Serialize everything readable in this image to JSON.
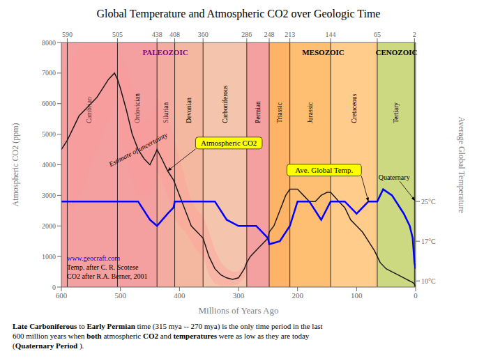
{
  "chart_data": {
    "type": "line",
    "title": "Global Temperature and Atmospheric CO2 over Geologic Time",
    "xlabel": "Millions of Years Ago",
    "ylabel": "Atmospheric CO2 (ppm)",
    "y2label": "Average Global Temperature",
    "xlim": [
      600,
      0
    ],
    "xticks": [
      600,
      500,
      400,
      300,
      200,
      100,
      0
    ],
    "x2lim": [
      600,
      0
    ],
    "x2ticks": [
      590,
      505,
      438,
      408,
      360,
      286,
      248,
      213,
      144,
      65,
      2
    ],
    "ylim": [
      0,
      8000
    ],
    "yticks": [
      0,
      1000,
      2000,
      3000,
      4000,
      5000,
      6000,
      7000,
      8000
    ],
    "y2lim": [
      0,
      8000
    ],
    "y2ticks": [
      {
        "value": 200,
        "label": "10°C"
      },
      {
        "value": 1500,
        "label": "17°C"
      },
      {
        "value": 2800,
        "label": "25°C"
      }
    ],
    "grid": false,
    "series": [
      {
        "name": "Estimate of uncertainty",
        "type": "band",
        "color": "#ff9999",
        "x": [
          600,
          590,
          580,
          570,
          560,
          550,
          540,
          530,
          520,
          510,
          505,
          500,
          490,
          480,
          470,
          460,
          450,
          440,
          438,
          430,
          420,
          410,
          408,
          400,
          390,
          380,
          370,
          360,
          350,
          340,
          330,
          320,
          310,
          300,
          290,
          286
        ],
        "upper": [
          7000,
          7200,
          7500,
          7800,
          7900,
          7900,
          7900,
          7900,
          7900,
          7900,
          7800,
          7600,
          7200,
          6500,
          6000,
          5500,
          5500,
          6000,
          6200,
          6000,
          5500,
          5000,
          4800,
          4200,
          3500,
          2800,
          2500,
          2300,
          1800,
          1200,
          800,
          600,
          500,
          500,
          700,
          900
        ],
        "lower": [
          2000,
          2200,
          2500,
          3000,
          3500,
          4000,
          4500,
          5000,
          5500,
          6000,
          5800,
          5000,
          4200,
          3500,
          3000,
          3000,
          3000,
          3500,
          3800,
          3500,
          3000,
          2500,
          2200,
          2000,
          1800,
          1500,
          1200,
          1000,
          400,
          100,
          50,
          50,
          50,
          100,
          300,
          600
        ]
      },
      {
        "name": "Atmospheric CO2",
        "color": "#1a1a1a",
        "x": [
          600,
          590,
          580,
          570,
          560,
          550,
          540,
          530,
          520,
          510,
          505,
          500,
          490,
          480,
          470,
          460,
          450,
          440,
          438,
          430,
          420,
          410,
          408,
          400,
          390,
          380,
          370,
          360,
          350,
          340,
          330,
          320,
          310,
          300,
          290,
          286,
          280,
          270,
          260,
          250,
          248,
          240,
          230,
          220,
          213,
          200,
          190,
          180,
          170,
          160,
          150,
          144,
          130,
          120,
          110,
          100,
          90,
          80,
          70,
          65,
          60,
          50,
          40,
          30,
          20,
          10,
          5,
          2,
          0
        ],
        "values": [
          4500,
          4800,
          5200,
          5600,
          5800,
          6000,
          6200,
          6500,
          6800,
          7000,
          6800,
          6500,
          5800,
          5000,
          4500,
          4200,
          4000,
          4400,
          4500,
          4200,
          3800,
          3500,
          3400,
          3000,
          2500,
          2000,
          1800,
          1600,
          1000,
          600,
          400,
          300,
          250,
          300,
          600,
          800,
          1000,
          1200,
          1400,
          1600,
          1800,
          2000,
          2500,
          3000,
          3200,
          3200,
          3000,
          2800,
          2800,
          3000,
          3100,
          3100,
          2800,
          2600,
          2200,
          2000,
          1800,
          1500,
          1200,
          1000,
          800,
          600,
          500,
          400,
          300,
          200,
          150,
          100,
          20
        ]
      },
      {
        "name": "Ave. Global Temp.",
        "color": "blue",
        "axis": "y2",
        "x": [
          600,
          590,
          580,
          560,
          540,
          520,
          505,
          490,
          470,
          450,
          438,
          420,
          410,
          408,
          390,
          370,
          360,
          340,
          320,
          300,
          286,
          270,
          250,
          248,
          230,
          213,
          200,
          180,
          160,
          144,
          130,
          120,
          100,
          80,
          65,
          55,
          40,
          20,
          10,
          5,
          2,
          0
        ],
        "values": [
          2800,
          2800,
          2800,
          2800,
          2800,
          2800,
          2800,
          2800,
          2800,
          2200,
          2000,
          2400,
          2600,
          2800,
          2800,
          2800,
          2800,
          2800,
          2200,
          2000,
          2000,
          2000,
          1600,
          1400,
          1500,
          2000,
          2800,
          2800,
          2200,
          2800,
          2800,
          2800,
          2400,
          2800,
          2800,
          3200,
          3000,
          2400,
          2000,
          1600,
          800,
          600
        ]
      }
    ],
    "periods": [
      {
        "name": "Cambrian",
        "start": 600,
        "end": 505,
        "color": "#f08080"
      },
      {
        "name": "Ordovician",
        "start": 505,
        "end": 438,
        "color": "#f08080"
      },
      {
        "name": "Silurian",
        "start": 438,
        "end": 408,
        "color": "#f09080"
      },
      {
        "name": "Devonian",
        "start": 408,
        "end": 360,
        "color": "#f0a080"
      },
      {
        "name": "Carboniferous",
        "start": 360,
        "end": 286,
        "color": "#f0b090"
      },
      {
        "name": "Permian",
        "start": 286,
        "end": 248,
        "color": "#f08080"
      },
      {
        "name": "Triassic",
        "start": 248,
        "end": 213,
        "color": "#ff9933"
      },
      {
        "name": "Jurassic",
        "start": 213,
        "end": 144,
        "color": "#ffaa44"
      },
      {
        "name": "Cretaceous",
        "start": 144,
        "end": 65,
        "color": "#ffbb66"
      },
      {
        "name": "Tertiary",
        "start": 65,
        "end": 2,
        "color": "#bbcc55"
      },
      {
        "name": "Quaternary",
        "start": 2,
        "end": 0,
        "color": "#88aa33"
      }
    ],
    "eras": [
      {
        "name": "PALEOZOIC",
        "color": "purple",
        "from": "Cambrian",
        "to": "Permian"
      },
      {
        "name": "MESOZOIC",
        "color": "black",
        "from": "Triassic",
        "to": "Cretaceous"
      },
      {
        "name": "CENOZOIC",
        "color": "black",
        "from": "Tertiary",
        "to": "Quaternary"
      }
    ],
    "annotations": [
      {
        "text": "www.geocraft.com",
        "color": "blue"
      },
      {
        "text": "Temp. after C. R. Scotese"
      },
      {
        "text": "CO2 after R.A. Berner, 2001"
      }
    ],
    "caption": [
      "Late Carboniferous to Early Permian time (315 mya -- 270 mya) is the only time period in the last",
      "600 million years when both atmospheric CO2 and temperatures were as low as they are today",
      "(Quaternary Period )."
    ],
    "caption_bold": [
      "Late Carboniferous",
      "Early Permian",
      "both",
      "CO2",
      "temperatures",
      "Quaternary Period"
    ]
  }
}
